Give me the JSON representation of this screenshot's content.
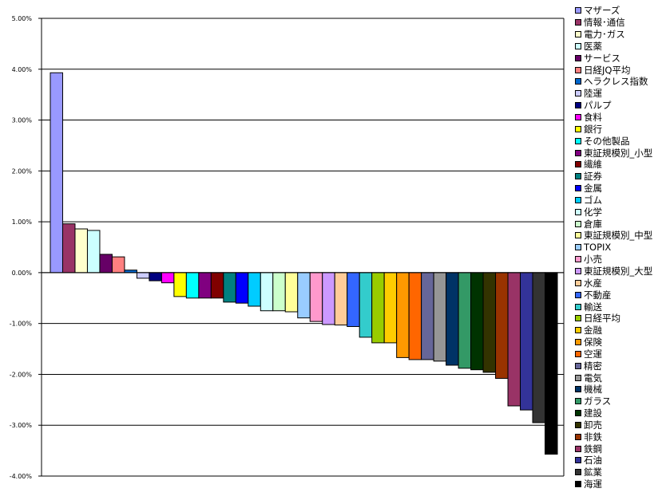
{
  "chart_data": {
    "type": "bar",
    "title": "",
    "xlabel": "",
    "ylabel": "",
    "ylim": [
      -4,
      5
    ],
    "yticks": [
      "5.00%",
      "4.00%",
      "3.00%",
      "2.00%",
      "1.00%",
      "0.00%",
      "-1.00%",
      "-2.00%",
      "-3.00%",
      "-4.00%"
    ],
    "grid": true,
    "legend_position": "right",
    "categories": [
      "マザーズ",
      "情報･通信",
      "電力･ガス",
      "医薬",
      "サービス",
      "日経JQ平均",
      "ヘラクレス指数",
      "陸運",
      "パルプ",
      "食料",
      "銀行",
      "その他製品",
      "東証規模別_小型",
      "繊維",
      "証券",
      "金属",
      "ゴム",
      "化学",
      "倉庫",
      "東証規模別_中型",
      "TOPIX",
      "小売",
      "東証規模別_大型",
      "水産",
      "不動産",
      "輸送",
      "日経平均",
      "金融",
      "保険",
      "空運",
      "精密",
      "電気",
      "機械",
      "ガラス",
      "建設",
      "卸売",
      "非鉄",
      "鉄鋼",
      "石油",
      "鉱業",
      "海運"
    ],
    "values": [
      3.93,
      0.96,
      0.86,
      0.83,
      0.36,
      0.31,
      0.05,
      -0.11,
      -0.16,
      -0.2,
      -0.47,
      -0.5,
      -0.5,
      -0.5,
      -0.58,
      -0.6,
      -0.66,
      -0.75,
      -0.75,
      -0.77,
      -0.89,
      -0.96,
      -1.02,
      -1.03,
      -1.06,
      -1.27,
      -1.38,
      -1.38,
      -1.67,
      -1.71,
      -1.71,
      -1.74,
      -1.82,
      -1.88,
      -1.91,
      -1.96,
      -2.08,
      -2.62,
      -2.7,
      -2.95,
      -3.57
    ],
    "colors": [
      "#9999FF",
      "#993366",
      "#FFFFCC",
      "#CCFFFF",
      "#660066",
      "#FF8080",
      "#0066CC",
      "#CCCCFF",
      "#000080",
      "#FF00FF",
      "#FFFF00",
      "#00FFFF",
      "#800080",
      "#800000",
      "#008080",
      "#0000FF",
      "#00CCFF",
      "#CCFFFF",
      "#CCFFCC",
      "#FFFF99",
      "#99CCFF",
      "#FF99CC",
      "#CC99FF",
      "#FFCC99",
      "#3366FF",
      "#33CCCC",
      "#99CC00",
      "#FFCC00",
      "#FF9900",
      "#FF6600",
      "#666699",
      "#969696",
      "#003366",
      "#339966",
      "#003300",
      "#333300",
      "#993300",
      "#993366",
      "#333399",
      "#333333",
      "#000000"
    ]
  }
}
